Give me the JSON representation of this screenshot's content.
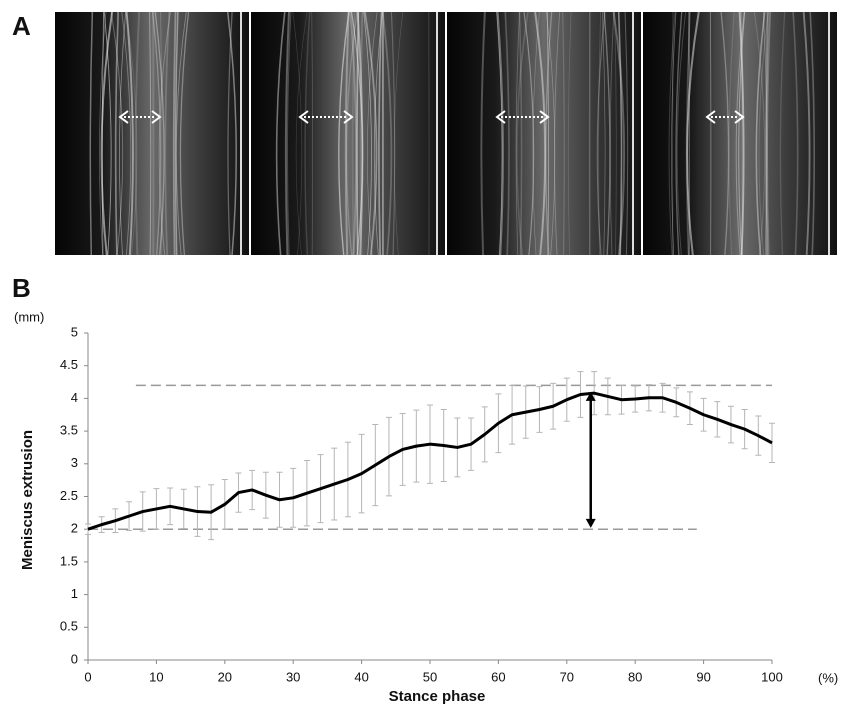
{
  "panel_labels": [
    "A",
    "B"
  ],
  "chart_data": {
    "type": "line",
    "x_label": "Stance phase",
    "y_label": "Meniscus extrusion",
    "x_unit": "(%)",
    "y_unit": "(mm)",
    "xlim": [
      0,
      100
    ],
    "ylim": [
      0,
      5
    ],
    "xticks": [
      0,
      10,
      20,
      30,
      40,
      50,
      60,
      70,
      80,
      90,
      100
    ],
    "yticks": [
      0,
      0.5,
      1,
      1.5,
      2,
      2.5,
      3,
      3.5,
      4,
      4.5,
      5
    ],
    "x": [
      0,
      2,
      4,
      6,
      8,
      10,
      12,
      14,
      16,
      18,
      20,
      22,
      24,
      26,
      28,
      30,
      32,
      34,
      36,
      38,
      40,
      42,
      44,
      46,
      48,
      50,
      52,
      54,
      56,
      58,
      60,
      62,
      64,
      66,
      68,
      70,
      72,
      74,
      76,
      78,
      80,
      82,
      84,
      86,
      88,
      90,
      92,
      94,
      96,
      98,
      100
    ],
    "series": [
      {
        "color": "#000000",
        "error_color": "#b5b5b5",
        "values": [
          2.0,
          2.07,
          2.13,
          2.2,
          2.27,
          2.31,
          2.35,
          2.31,
          2.27,
          2.26,
          2.38,
          2.56,
          2.6,
          2.52,
          2.45,
          2.48,
          2.55,
          2.62,
          2.69,
          2.76,
          2.85,
          2.98,
          3.11,
          3.22,
          3.27,
          3.3,
          3.28,
          3.25,
          3.3,
          3.45,
          3.62,
          3.75,
          3.79,
          3.83,
          3.88,
          3.98,
          4.06,
          4.08,
          4.03,
          3.98,
          3.99,
          4.01,
          4.01,
          3.94,
          3.85,
          3.75,
          3.68,
          3.6,
          3.53,
          3.43,
          3.32
        ],
        "errors": [
          0.08,
          0.12,
          0.18,
          0.22,
          0.3,
          0.31,
          0.28,
          0.3,
          0.38,
          0.42,
          0.38,
          0.3,
          0.3,
          0.35,
          0.42,
          0.45,
          0.5,
          0.52,
          0.55,
          0.57,
          0.6,
          0.62,
          0.6,
          0.55,
          0.55,
          0.6,
          0.55,
          0.45,
          0.4,
          0.42,
          0.45,
          0.45,
          0.4,
          0.35,
          0.35,
          0.33,
          0.35,
          0.33,
          0.28,
          0.22,
          0.2,
          0.2,
          0.22,
          0.22,
          0.25,
          0.25,
          0.27,
          0.28,
          0.3,
          0.3,
          0.3
        ]
      }
    ],
    "reference_lines": [
      {
        "y": 4.2,
        "x": [
          7,
          100
        ]
      },
      {
        "y": 2,
        "x": [
          0,
          89
        ]
      }
    ],
    "reference_color": "#999999",
    "arrow": {
      "x": 73.5,
      "y": [
        2.02,
        4.1
      ]
    }
  }
}
